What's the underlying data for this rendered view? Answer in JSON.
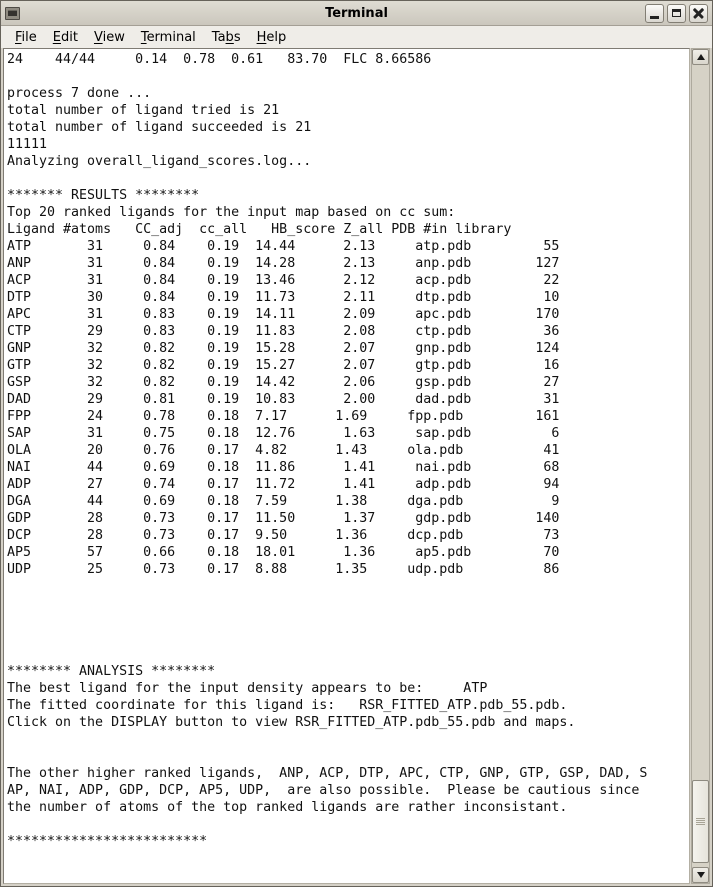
{
  "window": {
    "title": "Terminal"
  },
  "menu": {
    "items": [
      {
        "label": "File",
        "pre": "",
        "key": "F",
        "post": "ile"
      },
      {
        "label": "Edit",
        "pre": "",
        "key": "E",
        "post": "dit"
      },
      {
        "label": "View",
        "pre": "",
        "key": "V",
        "post": "iew"
      },
      {
        "label": "Terminal",
        "pre": "",
        "key": "T",
        "post": "erminal"
      },
      {
        "label": "Tabs",
        "pre": "Ta",
        "key": "b",
        "post": "s"
      },
      {
        "label": "Help",
        "pre": "",
        "key": "H",
        "post": "elp"
      }
    ]
  },
  "terminal": {
    "status_line": "24    44/44     0.14  0.78  0.61   83.70  FLC 8.66586",
    "log_lines": [
      "process 7 done ...",
      "total number of ligand tried is 21",
      "total number of ligand succeeded is 21",
      "11111",
      "Analyzing overall_ligand_scores.log..."
    ],
    "results": {
      "banner": "******* RESULTS ********",
      "subtitle": "Top 20 ranked ligands for the input map based on cc sum:",
      "table": {
        "header_line": "Ligand #atoms   CC_adj  cc_all   HB_score Z_all PDB #in library",
        "columns": [
          "Ligand",
          "#atoms",
          "CC_adj",
          "cc_all",
          "HB_score",
          "Z_all",
          "PDB",
          "#in library"
        ],
        "rows": [
          {
            "ligand": "ATP",
            "atoms": 31,
            "cc_adj": "0.84",
            "cc_all": "0.19",
            "hb_score": "14.44",
            "z_all": "2.13",
            "pdb": "atp.pdb",
            "in_library": 55
          },
          {
            "ligand": "ANP",
            "atoms": 31,
            "cc_adj": "0.84",
            "cc_all": "0.19",
            "hb_score": "14.28",
            "z_all": "2.13",
            "pdb": "anp.pdb",
            "in_library": 127
          },
          {
            "ligand": "ACP",
            "atoms": 31,
            "cc_adj": "0.84",
            "cc_all": "0.19",
            "hb_score": "13.46",
            "z_all": "2.12",
            "pdb": "acp.pdb",
            "in_library": 22
          },
          {
            "ligand": "DTP",
            "atoms": 30,
            "cc_adj": "0.84",
            "cc_all": "0.19",
            "hb_score": "11.73",
            "z_all": "2.11",
            "pdb": "dtp.pdb",
            "in_library": 10
          },
          {
            "ligand": "APC",
            "atoms": 31,
            "cc_adj": "0.83",
            "cc_all": "0.19",
            "hb_score": "14.11",
            "z_all": "2.09",
            "pdb": "apc.pdb",
            "in_library": 170
          },
          {
            "ligand": "CTP",
            "atoms": 29,
            "cc_adj": "0.83",
            "cc_all": "0.19",
            "hb_score": "11.83",
            "z_all": "2.08",
            "pdb": "ctp.pdb",
            "in_library": 36
          },
          {
            "ligand": "GNP",
            "atoms": 32,
            "cc_adj": "0.82",
            "cc_all": "0.19",
            "hb_score": "15.28",
            "z_all": "2.07",
            "pdb": "gnp.pdb",
            "in_library": 124
          },
          {
            "ligand": "GTP",
            "atoms": 32,
            "cc_adj": "0.82",
            "cc_all": "0.19",
            "hb_score": "15.27",
            "z_all": "2.07",
            "pdb": "gtp.pdb",
            "in_library": 16
          },
          {
            "ligand": "GSP",
            "atoms": 32,
            "cc_adj": "0.82",
            "cc_all": "0.19",
            "hb_score": "14.42",
            "z_all": "2.06",
            "pdb": "gsp.pdb",
            "in_library": 27
          },
          {
            "ligand": "DAD",
            "atoms": 29,
            "cc_adj": "0.81",
            "cc_all": "0.19",
            "hb_score": "10.83",
            "z_all": "2.00",
            "pdb": "dad.pdb",
            "in_library": 31
          },
          {
            "ligand": "FPP",
            "atoms": 24,
            "cc_adj": "0.78",
            "cc_all": "0.18",
            "hb_score": "7.17",
            "z_all": "1.69",
            "pdb": "fpp.pdb",
            "in_library": 161
          },
          {
            "ligand": "SAP",
            "atoms": 31,
            "cc_adj": "0.75",
            "cc_all": "0.18",
            "hb_score": "12.76",
            "z_all": "1.63",
            "pdb": "sap.pdb",
            "in_library": 6
          },
          {
            "ligand": "OLA",
            "atoms": 20,
            "cc_adj": "0.76",
            "cc_all": "0.17",
            "hb_score": "4.82",
            "z_all": "1.43",
            "pdb": "ola.pdb",
            "in_library": 41
          },
          {
            "ligand": "NAI",
            "atoms": 44,
            "cc_adj": "0.69",
            "cc_all": "0.18",
            "hb_score": "11.86",
            "z_all": "1.41",
            "pdb": "nai.pdb",
            "in_library": 68
          },
          {
            "ligand": "ADP",
            "atoms": 27,
            "cc_adj": "0.74",
            "cc_all": "0.17",
            "hb_score": "11.72",
            "z_all": "1.41",
            "pdb": "adp.pdb",
            "in_library": 94
          },
          {
            "ligand": "DGA",
            "atoms": 44,
            "cc_adj": "0.69",
            "cc_all": "0.18",
            "hb_score": "7.59",
            "z_all": "1.38",
            "pdb": "dga.pdb",
            "in_library": 9
          },
          {
            "ligand": "GDP",
            "atoms": 28,
            "cc_adj": "0.73",
            "cc_all": "0.17",
            "hb_score": "11.50",
            "z_all": "1.37",
            "pdb": "gdp.pdb",
            "in_library": 140
          },
          {
            "ligand": "DCP",
            "atoms": 28,
            "cc_adj": "0.73",
            "cc_all": "0.17",
            "hb_score": "9.50",
            "z_all": "1.36",
            "pdb": "dcp.pdb",
            "in_library": 73
          },
          {
            "ligand": "AP5",
            "atoms": 57,
            "cc_adj": "0.66",
            "cc_all": "0.18",
            "hb_score": "18.01",
            "z_all": "1.36",
            "pdb": "ap5.pdb",
            "in_library": 70
          },
          {
            "ligand": "UDP",
            "atoms": 25,
            "cc_adj": "0.73",
            "cc_all": "0.17",
            "hb_score": "8.88",
            "z_all": "1.35",
            "pdb": "udp.pdb",
            "in_library": 86
          }
        ]
      }
    },
    "analysis": {
      "lines": [
        "******** ANALYSIS ********",
        "The best ligand for the input density appears to be:     ATP",
        "The fitted coordinate for this ligand is:   RSR_FITTED_ATP.pdb_55.pdb.",
        "Click on the DISPLAY button to view RSR_FITTED_ATP.pdb_55.pdb and maps.",
        "",
        "",
        "The other higher ranked ligands,  ANP, ACP, DTP, APC, CTP, GNP, GTP, GSP, DAD, S",
        "AP, NAI, ADP, GDP, DCP, AP5, UDP,  are also possible.  Please be cautious since",
        "the number of atoms of the top ranked ligands are rather inconsistant.",
        "",
        "*************************"
      ]
    }
  },
  "colors": {
    "titlebar_bg": "#d8d4ca",
    "menubar_bg": "#efede8",
    "terminal_bg": "#ffffff",
    "terminal_fg": "#111111",
    "frame_bg": "#d5d1c7",
    "scrollbar_trough": "#d6d2c6",
    "scrollbar_thumb": "#efeee8"
  }
}
